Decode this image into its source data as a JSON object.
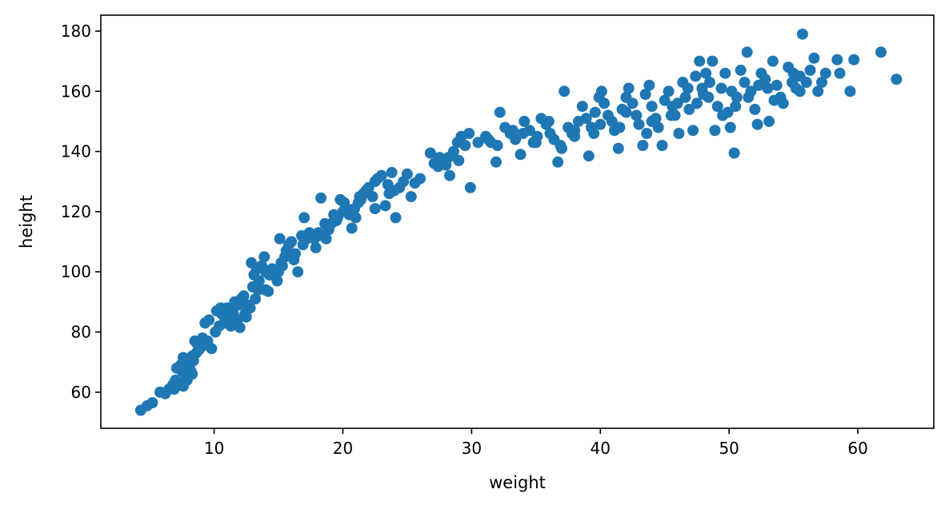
{
  "chart_data": {
    "type": "scatter",
    "xlabel": "weight",
    "ylabel": "height",
    "xlim": [
      1.2,
      65.9
    ],
    "ylim": [
      48.0,
      185.3
    ],
    "xticks": [
      10,
      20,
      30,
      40,
      50,
      60
    ],
    "yticks": [
      60,
      80,
      100,
      120,
      140,
      160,
      180
    ],
    "grid": false,
    "marker_color": "#1f77b4",
    "series": [
      {
        "points": [
          [
            4.3,
            54
          ],
          [
            4.8,
            55.5
          ],
          [
            5.2,
            56.5
          ],
          [
            5.8,
            60
          ],
          [
            6.2,
            59.5
          ],
          [
            6.5,
            61
          ],
          [
            6.8,
            62.5
          ],
          [
            7.0,
            64
          ],
          [
            7.3,
            63
          ],
          [
            7.6,
            62
          ],
          [
            7.5,
            67
          ],
          [
            7.7,
            68
          ],
          [
            7.9,
            70
          ],
          [
            8.1,
            69
          ],
          [
            8.3,
            72
          ],
          [
            7.8,
            65.5
          ],
          [
            8.0,
            66
          ],
          [
            8.2,
            67
          ],
          [
            8.4,
            70.5
          ],
          [
            7.6,
            71.5
          ],
          [
            8.6,
            73
          ],
          [
            8.7,
            76
          ],
          [
            9.0,
            75
          ],
          [
            8.5,
            77
          ],
          [
            9.3,
            83
          ],
          [
            9.6,
            84
          ],
          [
            9.8,
            74.5
          ],
          [
            10.1,
            80
          ],
          [
            10.4,
            82
          ],
          [
            10.6,
            86
          ],
          [
            10.8,
            85
          ],
          [
            11.0,
            88
          ],
          [
            11.2,
            84.5
          ],
          [
            11.4,
            87
          ],
          [
            11.6,
            90
          ],
          [
            11.9,
            89
          ],
          [
            12.1,
            91
          ],
          [
            12.3,
            92
          ],
          [
            11.7,
            83
          ],
          [
            12.0,
            81.5
          ],
          [
            12.5,
            85
          ],
          [
            12.8,
            88
          ],
          [
            13.0,
            95
          ],
          [
            13.1,
            99
          ],
          [
            13.3,
            101
          ],
          [
            12.9,
            103
          ],
          [
            13.5,
            97
          ],
          [
            13.7,
            102
          ],
          [
            14.0,
            100
          ],
          [
            14.2,
            93.5
          ],
          [
            13.9,
            105
          ],
          [
            14.5,
            101
          ],
          [
            14.9,
            97
          ],
          [
            15.2,
            103
          ],
          [
            15.5,
            105
          ],
          [
            15.6,
            107
          ],
          [
            15.8,
            109
          ],
          [
            15.1,
            111
          ],
          [
            16.0,
            110
          ],
          [
            16.3,
            106
          ],
          [
            16.5,
            100
          ],
          [
            16.9,
            109
          ],
          [
            17.2,
            111
          ],
          [
            17.0,
            118
          ],
          [
            17.4,
            113
          ],
          [
            17.6,
            112
          ],
          [
            17.9,
            108
          ],
          [
            18.1,
            113
          ],
          [
            18.4,
            112
          ],
          [
            18.6,
            116
          ],
          [
            18.9,
            114
          ],
          [
            19.1,
            116
          ],
          [
            19.3,
            119
          ],
          [
            19.6,
            118
          ],
          [
            18.3,
            124.5
          ],
          [
            19.8,
            124
          ],
          [
            20.1,
            123
          ],
          [
            20.3,
            121
          ],
          [
            20.5,
            119
          ],
          [
            20.7,
            114.5
          ],
          [
            20.9,
            121
          ],
          [
            21.2,
            123
          ],
          [
            21.4,
            124
          ],
          [
            21.6,
            126
          ],
          [
            21.8,
            127
          ],
          [
            22.0,
            128
          ],
          [
            22.3,
            125
          ],
          [
            22.5,
            130
          ],
          [
            22.7,
            131
          ],
          [
            23.0,
            132
          ],
          [
            23.3,
            122
          ],
          [
            23.5,
            129
          ],
          [
            23.8,
            133
          ],
          [
            24.1,
            118
          ],
          [
            24.4,
            128
          ],
          [
            24.7,
            130
          ],
          [
            25.0,
            132.5
          ],
          [
            25.3,
            125
          ],
          [
            25.6,
            129.5
          ],
          [
            26.8,
            139.5
          ],
          [
            27.1,
            136
          ],
          [
            27.4,
            135
          ],
          [
            27.7,
            137
          ],
          [
            28.0,
            135.5
          ],
          [
            28.3,
            132
          ],
          [
            28.6,
            140
          ],
          [
            28.9,
            143
          ],
          [
            29.2,
            145
          ],
          [
            29.5,
            142
          ],
          [
            29.8,
            146
          ],
          [
            29.9,
            128
          ],
          [
            31.1,
            145
          ],
          [
            31.5,
            143
          ],
          [
            31.9,
            136.5
          ],
          [
            32.2,
            153
          ],
          [
            32.6,
            148
          ],
          [
            33.0,
            146
          ],
          [
            33.4,
            144
          ],
          [
            33.8,
            139
          ],
          [
            34.1,
            150
          ],
          [
            34.5,
            147
          ],
          [
            34.8,
            143
          ],
          [
            35.1,
            145
          ],
          [
            35.4,
            151
          ],
          [
            35.8,
            149
          ],
          [
            36.1,
            146
          ],
          [
            36.4,
            144
          ],
          [
            36.7,
            136.5
          ],
          [
            36.9,
            142
          ],
          [
            37.2,
            160
          ],
          [
            37.5,
            148
          ],
          [
            37.8,
            146
          ],
          [
            38.0,
            147
          ],
          [
            38.3,
            150
          ],
          [
            38.6,
            155
          ],
          [
            38.9,
            151
          ],
          [
            39.1,
            138.5
          ],
          [
            39.3,
            148
          ],
          [
            39.6,
            153
          ],
          [
            39.9,
            158
          ],
          [
            40.1,
            160
          ],
          [
            40.3,
            156
          ],
          [
            40.6,
            152
          ],
          [
            40.9,
            150
          ],
          [
            41.1,
            147
          ],
          [
            41.4,
            141
          ],
          [
            41.7,
            154
          ],
          [
            42.0,
            158
          ],
          [
            42.2,
            161
          ],
          [
            42.5,
            156
          ],
          [
            42.8,
            152
          ],
          [
            43.0,
            149
          ],
          [
            43.3,
            142
          ],
          [
            43.5,
            159
          ],
          [
            43.8,
            162
          ],
          [
            44.0,
            155
          ],
          [
            44.3,
            151
          ],
          [
            44.5,
            148
          ],
          [
            44.8,
            142
          ],
          [
            45.0,
            157
          ],
          [
            45.3,
            160
          ],
          [
            45.6,
            155
          ],
          [
            45.8,
            152
          ],
          [
            46.1,
            146
          ],
          [
            46.4,
            163
          ],
          [
            46.6,
            158
          ],
          [
            46.9,
            154
          ],
          [
            47.2,
            147
          ],
          [
            47.4,
            165
          ],
          [
            47.7,
            170
          ],
          [
            47.9,
            161
          ],
          [
            48.2,
            166
          ],
          [
            48.4,
            158
          ],
          [
            48.7,
            170
          ],
          [
            48.9,
            147
          ],
          [
            49.1,
            155
          ],
          [
            49.4,
            161
          ],
          [
            49.7,
            166
          ],
          [
            49.9,
            153
          ],
          [
            50.1,
            148
          ],
          [
            50.4,
            139.5
          ],
          [
            50.6,
            158
          ],
          [
            50.9,
            167
          ],
          [
            51.2,
            163
          ],
          [
            51.4,
            173
          ],
          [
            51.7,
            160
          ],
          [
            52.0,
            154
          ],
          [
            52.2,
            149
          ],
          [
            52.5,
            166
          ],
          [
            52.8,
            164
          ],
          [
            53.1,
            150
          ],
          [
            53.4,
            170
          ],
          [
            53.7,
            162
          ],
          [
            54.0,
            158
          ],
          [
            54.2,
            156
          ],
          [
            54.6,
            168
          ],
          [
            54.9,
            163
          ],
          [
            55.2,
            161
          ],
          [
            55.5,
            165
          ],
          [
            55.7,
            179
          ],
          [
            56.0,
            163
          ],
          [
            56.3,
            167
          ],
          [
            56.6,
            171
          ],
          [
            56.9,
            160
          ],
          [
            57.5,
            166
          ],
          [
            58.4,
            170.5
          ],
          [
            58.6,
            166
          ],
          [
            59.4,
            160
          ],
          [
            59.7,
            170.5
          ],
          [
            61.8,
            173
          ],
          [
            63.0,
            164
          ],
          [
            55.0,
            166
          ],
          [
            53.0,
            161
          ],
          [
            50.5,
            155
          ],
          [
            48.0,
            159
          ],
          [
            46.0,
            156
          ],
          [
            44.0,
            150
          ],
          [
            42.0,
            153
          ],
          [
            40.0,
            149
          ],
          [
            38.0,
            145
          ],
          [
            36.0,
            150
          ],
          [
            34.0,
            146
          ],
          [
            32.0,
            142
          ],
          [
            30.5,
            143
          ],
          [
            27.5,
            138
          ],
          [
            26.0,
            131
          ],
          [
            24.0,
            127
          ],
          [
            22.5,
            121
          ],
          [
            21.0,
            118
          ],
          [
            19.5,
            117
          ],
          [
            17.8,
            111
          ],
          [
            16.2,
            104
          ],
          [
            15.0,
            100
          ],
          [
            14.0,
            94
          ],
          [
            13.2,
            91
          ],
          [
            12.4,
            86
          ],
          [
            11.8,
            84
          ],
          [
            11.3,
            82
          ],
          [
            10.9,
            83
          ],
          [
            10.2,
            87
          ],
          [
            9.5,
            77
          ],
          [
            9.1,
            78
          ],
          [
            8.8,
            74
          ],
          [
            8.3,
            66
          ],
          [
            7.9,
            64
          ],
          [
            7.4,
            62.5
          ],
          [
            6.9,
            61
          ],
          [
            7.1,
            68
          ],
          [
            7.4,
            69
          ],
          [
            10.5,
            88
          ],
          [
            11.5,
            86
          ],
          [
            12.6,
            89
          ],
          [
            13.4,
            94
          ],
          [
            14.3,
            99
          ],
          [
            15.3,
            102
          ],
          [
            16.8,
            112
          ],
          [
            18.7,
            111
          ],
          [
            20.0,
            120
          ],
          [
            21.3,
            125
          ],
          [
            23.6,
            126
          ],
          [
            28.2,
            138
          ],
          [
            29.0,
            137
          ],
          [
            31.3,
            144
          ],
          [
            33.2,
            147
          ],
          [
            35.0,
            143
          ],
          [
            37.0,
            141
          ],
          [
            39.5,
            146
          ],
          [
            41.5,
            148
          ],
          [
            43.6,
            146
          ],
          [
            45.5,
            152
          ],
          [
            47.5,
            156
          ],
          [
            49.5,
            152
          ],
          [
            51.5,
            158
          ],
          [
            53.5,
            157
          ],
          [
            55.5,
            160
          ],
          [
            57.2,
            163
          ],
          [
            46.8,
            161
          ],
          [
            48.5,
            163
          ],
          [
            50.2,
            160
          ],
          [
            52.3,
            162
          ]
        ]
      }
    ]
  }
}
